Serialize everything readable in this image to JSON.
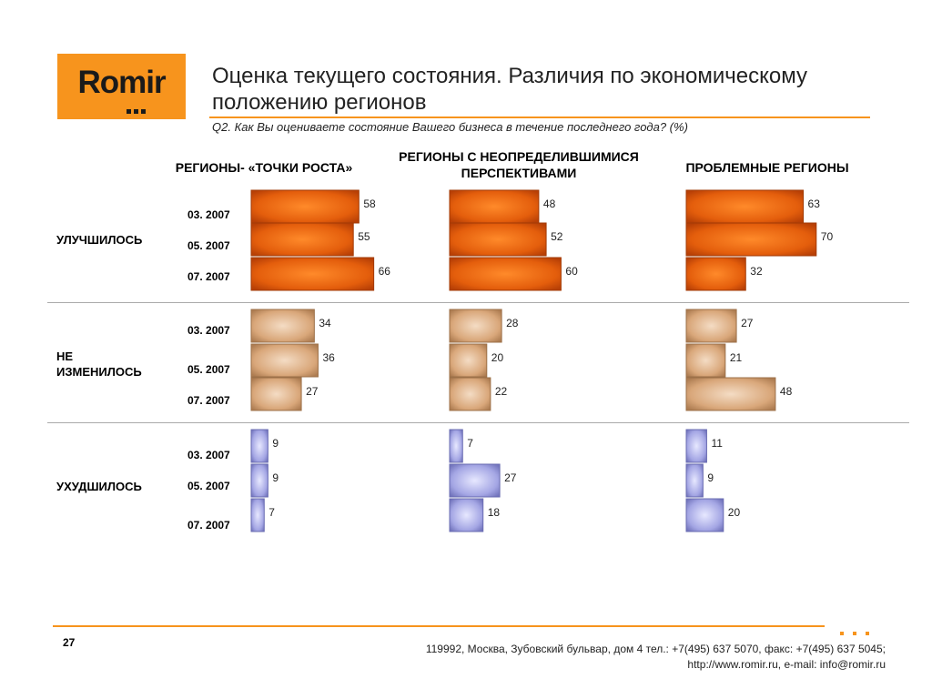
{
  "logo": {
    "text": "Romir"
  },
  "title": "Оценка текущего состояния. Различия по экономическому положению регионов",
  "subtitle": "Q2. Как Вы оцениваете состояние Вашего бизнеса в течение последнего года? (%)",
  "columns": [
    "РЕГИОНЫ- «ТОЧКИ РОСТА»",
    "РЕГИОНЫ   С НЕОПРЕДЕЛИВШИМИСЯ ПЕРСПЕКТИВАМИ",
    "ПРОБЛЕМНЫЕ РЕГИОНЫ"
  ],
  "rows": [
    "УЛУЧШИЛОСЬ",
    "НЕ ИЗМЕНИЛОСЬ",
    "УХУДШИЛОСЬ"
  ],
  "periods": [
    "03. 2007",
    "05. 2007",
    "07. 2007"
  ],
  "colors": {
    "improved": "#e8600a",
    "unchanged": "#d9a77a",
    "worsened": "#9d9fe0",
    "accent": "#f7941d"
  },
  "chart_data": {
    "type": "bar",
    "orientation": "horizontal",
    "unit": "%",
    "categories": [
      "03. 2007",
      "05. 2007",
      "07. 2007"
    ],
    "panels": [
      {
        "region": "РЕГИОНЫ- «ТОЧКИ РОСТА»",
        "series": [
          {
            "name": "УЛУЧШИЛОСЬ",
            "values": [
              58,
              55,
              66
            ]
          },
          {
            "name": "НЕ ИЗМЕНИЛОСЬ",
            "values": [
              34,
              36,
              27
            ]
          },
          {
            "name": "УХУДШИЛОСЬ",
            "values": [
              9,
              9,
              7
            ]
          }
        ]
      },
      {
        "region": "РЕГИОНЫ С НЕОПРЕДЕЛИВШИМИСЯ ПЕРСПЕКТИВАМИ",
        "series": [
          {
            "name": "УЛУЧШИЛОСЬ",
            "values": [
              48,
              52,
              60
            ]
          },
          {
            "name": "НЕ ИЗМЕНИЛОСЬ",
            "values": [
              28,
              20,
              22
            ]
          },
          {
            "name": "УХУДШИЛОСЬ",
            "values": [
              7,
              27,
              18
            ]
          }
        ]
      },
      {
        "region": "ПРОБЛЕМНЫЕ РЕГИОНЫ",
        "series": [
          {
            "name": "УЛУЧШИЛОСЬ",
            "values": [
              63,
              70,
              32
            ]
          },
          {
            "name": "НЕ ИЗМЕНИЛОСЬ",
            "values": [
              27,
              21,
              48
            ]
          },
          {
            "name": "УХУДШИЛОСЬ",
            "values": [
              11,
              9,
              20
            ]
          }
        ]
      }
    ]
  },
  "footer": {
    "page": "27",
    "address": "119992, Москва, Зубовский бульвар, дом 4   тел.: +7(495) 637 5070, факс: +7(495) 637 5045;",
    "contacts": "http://www.romir.ru, e-mail: info@romir.ru"
  }
}
